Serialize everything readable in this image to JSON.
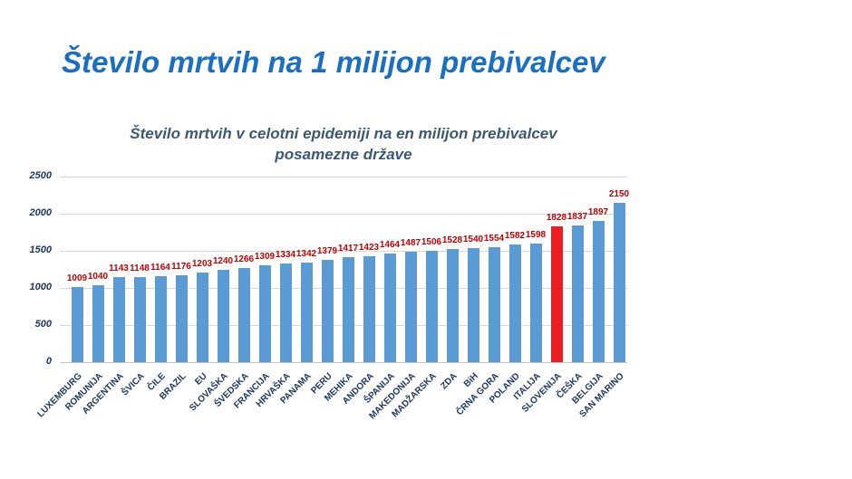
{
  "page": {
    "background": "#ffffff"
  },
  "slide": {
    "title": "Število mrtvih na 1 milijon prebivalcev"
  },
  "chart_data": {
    "type": "bar",
    "title": "Število mrtvih v celotni epidemiji na en milijon prebivalcev posamezne države",
    "title_lines": [
      "Število mrtvih v celotni epidemiji na en milijon prebivalcev",
      "posamezne države"
    ],
    "categories": [
      "LUXEMBURG",
      "ROMUNIJA",
      "ARGENTINA",
      "ŠVICA",
      "ČILE",
      "BRAZIL",
      "EU",
      "SLOVAŠKA",
      "ŠVEDSKA",
      "FRANCIJA",
      "HRVAŠKA",
      "PANAMA",
      "PERU",
      "MEHIKA",
      "ANDORA",
      "ŠPANIJA",
      "MAKEDONIJA",
      "MADŽARSKA",
      "ZDA",
      "BiH",
      "ČRNA GORA",
      "POLAND",
      "ITALIJA",
      "SLOVENIJA",
      "ČEŠKA",
      "BELGIJA",
      "SAN MARINO"
    ],
    "values": [
      1009,
      1040,
      1143,
      1148,
      1164,
      1176,
      1203,
      1240,
      1266,
      1309,
      1334,
      1342,
      1379,
      1417,
      1423,
      1464,
      1487,
      1506,
      1528,
      1540,
      1554,
      1582,
      1598,
      1828,
      1837,
      1897,
      2150
    ],
    "highlight_index": 23,
    "highlight_category": "SLOVENIJA",
    "xlabel": "",
    "ylabel": "",
    "ylim": [
      0,
      2500
    ],
    "yticks": [
      0,
      500,
      1000,
      1500,
      2000,
      2500
    ],
    "grid": true,
    "legend": false,
    "colors": {
      "bar": "#5b9bd5",
      "highlight_bar": "#ee1c23",
      "value_label": "#c00000",
      "tick_label": "#1f3864",
      "category_label": "#1f3864",
      "chart_title": "#3d5872",
      "slide_title": "#1b6fc1",
      "gridline": "#d9d9d9",
      "axis_line": "#c6c6c6"
    }
  }
}
